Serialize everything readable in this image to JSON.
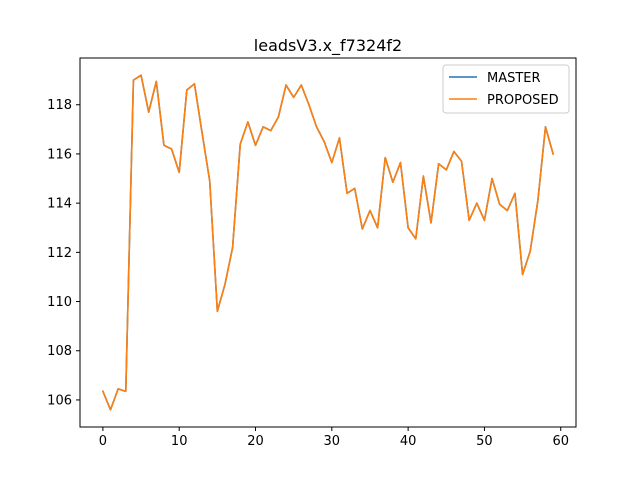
{
  "chart_data": {
    "type": "line",
    "title": "leadsV3.x_f7324f2",
    "xlabel": "",
    "ylabel": "",
    "xlim": [
      -3,
      62
    ],
    "ylim": [
      104.9,
      119.9
    ],
    "xticks": [
      0,
      10,
      20,
      30,
      40,
      50,
      60
    ],
    "yticks": [
      106,
      108,
      110,
      112,
      114,
      116,
      118
    ],
    "grid": false,
    "legend": "top-right",
    "x": [
      0,
      1,
      2,
      3,
      4,
      5,
      6,
      7,
      8,
      9,
      10,
      11,
      12,
      13,
      14,
      15,
      16,
      17,
      18,
      19,
      20,
      21,
      22,
      23,
      24,
      25,
      26,
      27,
      28,
      29,
      30,
      31,
      32,
      33,
      34,
      35,
      36,
      37,
      38,
      39,
      40,
      41,
      42,
      43,
      44,
      45,
      46,
      47,
      48,
      49,
      50,
      51,
      52,
      53,
      54,
      55,
      56,
      57,
      58,
      59
    ],
    "series": [
      {
        "name": "MASTER",
        "color": "#1f77b4",
        "values": [
          106.35,
          105.6,
          106.45,
          106.35,
          119.0,
          119.2,
          117.7,
          118.95,
          116.35,
          116.2,
          115.25,
          118.6,
          118.85,
          116.85,
          114.9,
          109.6,
          110.7,
          112.2,
          116.4,
          117.3,
          116.35,
          117.1,
          116.95,
          117.5,
          118.8,
          118.3,
          118.8,
          118.0,
          117.1,
          116.5,
          115.65,
          116.65,
          114.4,
          114.6,
          112.95,
          113.7,
          113.0,
          115.85,
          114.85,
          115.65,
          113.0,
          112.55,
          115.1,
          113.2,
          115.6,
          115.35,
          116.1,
          115.7,
          113.3,
          114.0,
          113.3,
          115.0,
          113.95,
          113.7,
          114.4,
          111.1,
          112.05,
          114.1,
          117.1,
          116.0
        ]
      },
      {
        "name": "PROPOSED",
        "color": "#ff7f0e",
        "values": [
          106.35,
          105.6,
          106.45,
          106.35,
          119.0,
          119.2,
          117.7,
          118.95,
          116.35,
          116.2,
          115.25,
          118.6,
          118.85,
          116.85,
          114.9,
          109.6,
          110.7,
          112.2,
          116.4,
          117.3,
          116.35,
          117.1,
          116.95,
          117.5,
          118.8,
          118.3,
          118.8,
          118.0,
          117.1,
          116.5,
          115.65,
          116.65,
          114.4,
          114.6,
          112.95,
          113.7,
          113.0,
          115.85,
          114.85,
          115.65,
          113.0,
          112.55,
          115.1,
          113.2,
          115.6,
          115.35,
          116.1,
          115.7,
          113.3,
          114.0,
          113.3,
          115.0,
          113.95,
          113.7,
          114.4,
          111.1,
          112.05,
          114.1,
          117.1,
          116.0
        ]
      }
    ]
  }
}
